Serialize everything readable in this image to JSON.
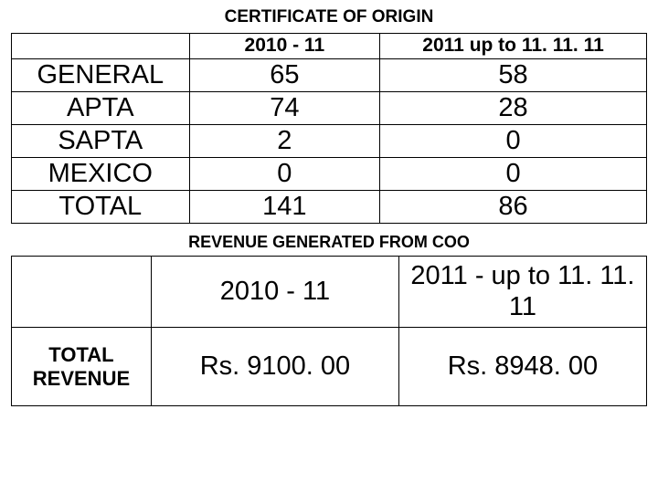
{
  "title1": "CERTIFICATE OF ORIGIN",
  "table1": {
    "headers": [
      "",
      "2010 - 11",
      "2011 up to  11. 11. 11"
    ],
    "rows": [
      [
        "GENERAL",
        "65",
        "58"
      ],
      [
        "APTA",
        "74",
        "28"
      ],
      [
        "SAPTA",
        "2",
        "0"
      ],
      [
        "MEXICO",
        "0",
        "0"
      ],
      [
        "TOTAL",
        "141",
        "86"
      ]
    ]
  },
  "title2": "REVENUE GENERATED FROM COO",
  "table2": {
    "headers": [
      "",
      "2010 - 11",
      "2011 - up to 11. 11. 11"
    ],
    "rows": [
      [
        "TOTAL REVENUE",
        "Rs. 9100. 00",
        "Rs. 8948. 00"
      ]
    ]
  },
  "colors": {
    "text": "#000000",
    "background": "#ffffff",
    "border": "#000000"
  },
  "fonts": {
    "title_size_pt": 19,
    "subtitle_size_pt": 18,
    "body_size_pt": 29,
    "header_size_pt": 21,
    "rowlabel_size_pt": 22
  }
}
